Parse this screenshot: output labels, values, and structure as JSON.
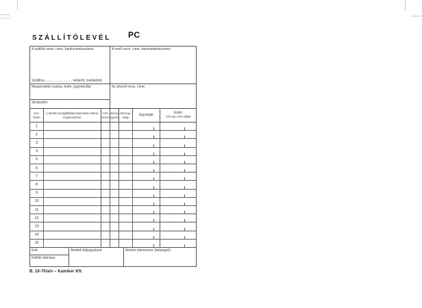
{
  "form": {
    "title": "SZÁLLÍTÓLEVÉL",
    "code": "PC",
    "footer_code": "B. 10-70/a/v  –  Kamiker Kft."
  },
  "parties": {
    "supplier_label": "A szállító neve, címe, bankszámlaszáma:",
    "buyer_label": "A vevő neve, címe, bankszámlaszáma:",
    "shipped_line": "Szállítva ............................ telepről, (raktárból)",
    "order_label": "Megrendelés száma, kelte, ügyintézője:",
    "receiver_label": "Az átvevő neve, címe:",
    "route_label": "Járatszám:"
  },
  "table": {
    "headers": {
      "row_no": "Sor-\nszám",
      "product": "A termék (szolgáltatás) besorolási száma,\nmegnevezése:",
      "vat": "ÁFA\nkulcs",
      "unit": "Menny.\negység",
      "quantity": "Mennyi-\nsége",
      "unit_price": "Egységár",
      "value": "Érték",
      "value_sub": "ÁFA-val / ÁFA nélkül"
    },
    "row_numbers": [
      "1",
      "2",
      "3",
      "4",
      "5",
      "6",
      "7",
      "8",
      "9",
      "10",
      "11",
      "12",
      "13",
      "14",
      "15"
    ]
  },
  "bottom": {
    "date_label": "Kelt:",
    "issuer_signature_label": "Kiállító aláírása:",
    "receipt_notes_label": "Átvételi feljegyzések:",
    "receipt_ack_label": "Átvétel elismerése (bélyegző):"
  }
}
